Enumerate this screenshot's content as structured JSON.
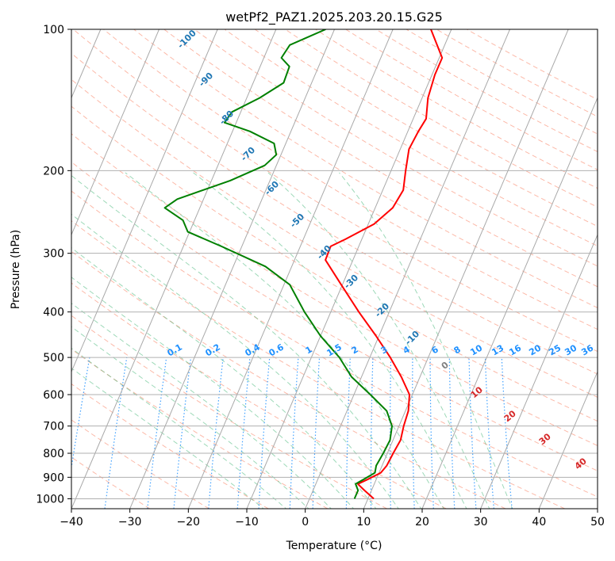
{
  "chart_data": {
    "type": "line",
    "title": "wetPf2_PAZ1.2025.203.20.15.G25",
    "xlabel": "Temperature (°C)",
    "ylabel": "Pressure (hPa)",
    "xlim": [
      -40,
      50
    ],
    "ylim": [
      1050,
      100
    ],
    "y_scale": "log",
    "grid": true,
    "x_ticks": [
      -40,
      -30,
      -20,
      -10,
      0,
      10,
      20,
      30,
      40,
      50
    ],
    "y_ticks": [
      100,
      200,
      300,
      400,
      500,
      600,
      700,
      800,
      900,
      1000
    ],
    "series": [
      {
        "role": "temperature",
        "color": "#ff0000",
        "points": [
          {
            "p": 1000,
            "t": 11.0
          },
          {
            "p": 960,
            "t": 8.8
          },
          {
            "p": 930,
            "t": 7.2
          },
          {
            "p": 910,
            "t": 8.5
          },
          {
            "p": 880,
            "t": 10.3
          },
          {
            "p": 850,
            "t": 10.8
          },
          {
            "p": 800,
            "t": 11.0
          },
          {
            "p": 750,
            "t": 11.3
          },
          {
            "p": 700,
            "t": 10.8
          },
          {
            "p": 650,
            "t": 10.5
          },
          {
            "p": 600,
            "t": 9.5
          },
          {
            "p": 550,
            "t": 6.8
          },
          {
            "p": 500,
            "t": 3.5
          },
          {
            "p": 450,
            "t": -0.5
          },
          {
            "p": 400,
            "t": -5.2
          },
          {
            "p": 350,
            "t": -10.2
          },
          {
            "p": 310,
            "t": -14.7
          },
          {
            "p": 290,
            "t": -14.8
          },
          {
            "p": 280,
            "t": -12.8
          },
          {
            "p": 260,
            "t": -9.0
          },
          {
            "p": 240,
            "t": -7.0
          },
          {
            "p": 220,
            "t": -6.5
          },
          {
            "p": 200,
            "t": -7.5
          },
          {
            "p": 180,
            "t": -8.5
          },
          {
            "p": 165,
            "t": -8.2
          },
          {
            "p": 155,
            "t": -7.8
          },
          {
            "p": 140,
            "t": -9.0
          },
          {
            "p": 125,
            "t": -9.5
          },
          {
            "p": 115,
            "t": -9.5
          },
          {
            "p": 100,
            "t": -13.5
          }
        ]
      },
      {
        "role": "dewpoint",
        "color": "#008000",
        "points": [
          {
            "p": 1000,
            "t": 7.7
          },
          {
            "p": 960,
            "t": 7.7
          },
          {
            "p": 930,
            "t": 6.8
          },
          {
            "p": 910,
            "t": 7.8
          },
          {
            "p": 880,
            "t": 9.3
          },
          {
            "p": 850,
            "t": 9.0
          },
          {
            "p": 800,
            "t": 9.3
          },
          {
            "p": 750,
            "t": 9.5
          },
          {
            "p": 700,
            "t": 8.8
          },
          {
            "p": 650,
            "t": 6.8
          },
          {
            "p": 600,
            "t": 2.8
          },
          {
            "p": 550,
            "t": -1.7
          },
          {
            "p": 500,
            "t": -5.2
          },
          {
            "p": 450,
            "t": -10.0
          },
          {
            "p": 400,
            "t": -14.5
          },
          {
            "p": 350,
            "t": -19.0
          },
          {
            "p": 320,
            "t": -24.5
          },
          {
            "p": 290,
            "t": -33.5
          },
          {
            "p": 270,
            "t": -40.3
          },
          {
            "p": 255,
            "t": -42.0
          },
          {
            "p": 240,
            "t": -46.0
          },
          {
            "p": 230,
            "t": -44.5
          },
          {
            "p": 210,
            "t": -36.8
          },
          {
            "p": 195,
            "t": -32.0
          },
          {
            "p": 185,
            "t": -30.8
          },
          {
            "p": 175,
            "t": -32.0
          },
          {
            "p": 165,
            "t": -37.0
          },
          {
            "p": 158,
            "t": -42.0
          },
          {
            "p": 150,
            "t": -41.5
          },
          {
            "p": 140,
            "t": -37.8
          },
          {
            "p": 130,
            "t": -34.8
          },
          {
            "p": 120,
            "t": -35.0
          },
          {
            "p": 115,
            "t": -37.0
          },
          {
            "p": 108,
            "t": -36.5
          },
          {
            "p": 100,
            "t": -31.5
          }
        ]
      }
    ],
    "isotherm_labels": [
      "-100",
      "-90",
      "-80",
      "-70",
      "-60",
      "-50",
      "-40",
      "-30",
      "-20",
      "-10"
    ],
    "mixing_ratio_labels": [
      "0.1",
      "0.2",
      "0.4",
      "0.6",
      "1",
      "1.5",
      "2",
      "3",
      "4",
      "6",
      "8",
      "10",
      "13",
      "16",
      "20",
      "25",
      "30",
      "36"
    ],
    "dry_adiabat_labels": [
      "0",
      "10",
      "20",
      "30",
      "40"
    ],
    "colors": {
      "isotherm_label": "#1f77b4",
      "mixing_ratio": "#1e90ff",
      "dry_adiabat": "#fa8060",
      "moist_adiabat": "#3cb371",
      "dry_label_red": "#d62728",
      "dry_label_gray": "#808080",
      "skew_line": "#a9a9a9",
      "grid": "#b0b0b0",
      "tan_curve": "#d2b48c"
    }
  }
}
